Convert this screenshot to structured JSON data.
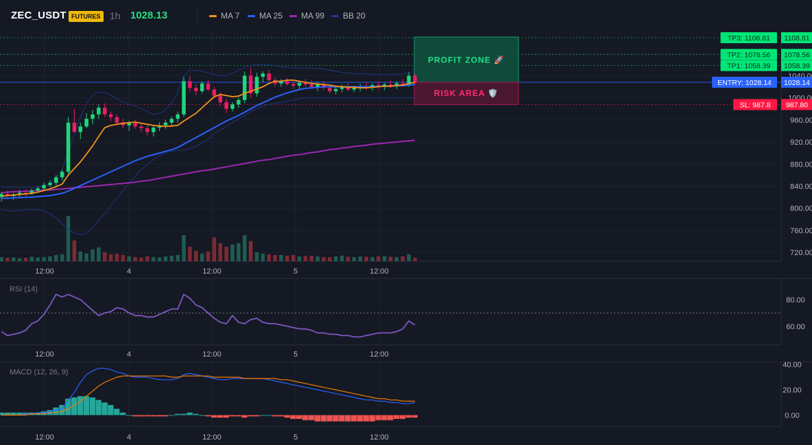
{
  "header": {
    "symbol": "ZEC_USDT",
    "badge": "FUTURES",
    "timeframe": "1h",
    "last_price": "1028.13",
    "legend": [
      {
        "label": "MA 7",
        "color": "#f7931a"
      },
      {
        "label": "MA 25",
        "color": "#2962ff"
      },
      {
        "label": "MA 99",
        "color": "#9c27b0"
      },
      {
        "label": "BB 20",
        "color": "#1e3a8a"
      }
    ]
  },
  "colors": {
    "up": "#26a69a",
    "up_bright": "#1fd67a",
    "down": "#e91e63",
    "ma7": "#f7931a",
    "ma25": "#2962ff",
    "ma99": "#9c27b0",
    "bb": "#1e3a8a",
    "rsi": "#7e57c2",
    "macd": "#2962ff",
    "signal": "#f57c00",
    "hist_up": "#26a69a",
    "hist_down": "#ef5350",
    "tp": "#00e676",
    "entry": "#2962ff",
    "sl": "#ff1744"
  },
  "chart_data": [
    {
      "type": "candlestick",
      "title": "ZEC_USDT 1h",
      "x_ticks": [
        "12:00",
        "4",
        "12:00",
        "5",
        "12:00"
      ],
      "y_ticks": [
        720,
        760,
        800,
        840,
        880,
        920,
        960,
        1000,
        1040,
        1080,
        1120
      ],
      "ylim": [
        704,
        1120
      ],
      "candles": [
        {
          "o": 820,
          "h": 830,
          "l": 812,
          "c": 826
        },
        {
          "o": 826,
          "h": 832,
          "l": 818,
          "c": 822
        },
        {
          "o": 822,
          "h": 828,
          "l": 815,
          "c": 825
        },
        {
          "o": 825,
          "h": 833,
          "l": 820,
          "c": 828
        },
        {
          "o": 828,
          "h": 834,
          "l": 822,
          "c": 826
        },
        {
          "o": 826,
          "h": 836,
          "l": 824,
          "c": 832
        },
        {
          "o": 832,
          "h": 840,
          "l": 828,
          "c": 836
        },
        {
          "o": 836,
          "h": 846,
          "l": 832,
          "c": 842
        },
        {
          "o": 842,
          "h": 850,
          "l": 838,
          "c": 846
        },
        {
          "o": 846,
          "h": 860,
          "l": 840,
          "c": 856
        },
        {
          "o": 856,
          "h": 870,
          "l": 850,
          "c": 866
        },
        {
          "o": 866,
          "h": 965,
          "l": 862,
          "c": 955
        },
        {
          "o": 955,
          "h": 980,
          "l": 940,
          "c": 938
        },
        {
          "o": 938,
          "h": 955,
          "l": 925,
          "c": 948
        },
        {
          "o": 948,
          "h": 972,
          "l": 945,
          "c": 962
        },
        {
          "o": 962,
          "h": 978,
          "l": 952,
          "c": 970
        },
        {
          "o": 970,
          "h": 988,
          "l": 962,
          "c": 982
        },
        {
          "o": 982,
          "h": 990,
          "l": 965,
          "c": 970
        },
        {
          "o": 970,
          "h": 975,
          "l": 958,
          "c": 965
        },
        {
          "o": 965,
          "h": 970,
          "l": 950,
          "c": 955
        },
        {
          "o": 955,
          "h": 962,
          "l": 945,
          "c": 950
        },
        {
          "o": 950,
          "h": 958,
          "l": 940,
          "c": 954
        },
        {
          "o": 954,
          "h": 960,
          "l": 944,
          "c": 948
        },
        {
          "o": 948,
          "h": 956,
          "l": 938,
          "c": 945
        },
        {
          "o": 945,
          "h": 952,
          "l": 932,
          "c": 938
        },
        {
          "o": 938,
          "h": 950,
          "l": 930,
          "c": 946
        },
        {
          "o": 946,
          "h": 956,
          "l": 940,
          "c": 950
        },
        {
          "o": 950,
          "h": 960,
          "l": 944,
          "c": 955
        },
        {
          "o": 955,
          "h": 966,
          "l": 950,
          "c": 962
        },
        {
          "o": 962,
          "h": 975,
          "l": 955,
          "c": 970
        },
        {
          "o": 970,
          "h": 1038,
          "l": 965,
          "c": 1030
        },
        {
          "o": 1030,
          "h": 1040,
          "l": 1010,
          "c": 1018
        },
        {
          "o": 1018,
          "h": 1025,
          "l": 1005,
          "c": 1012
        },
        {
          "o": 1012,
          "h": 1030,
          "l": 1008,
          "c": 1026
        },
        {
          "o": 1026,
          "h": 1032,
          "l": 1012,
          "c": 1015
        },
        {
          "o": 1015,
          "h": 1020,
          "l": 998,
          "c": 1004
        },
        {
          "o": 1004,
          "h": 1010,
          "l": 985,
          "c": 992
        },
        {
          "o": 992,
          "h": 998,
          "l": 972,
          "c": 980
        },
        {
          "o": 980,
          "h": 992,
          "l": 975,
          "c": 988
        },
        {
          "o": 988,
          "h": 1000,
          "l": 982,
          "c": 996
        },
        {
          "o": 996,
          "h": 1048,
          "l": 990,
          "c": 1040
        },
        {
          "o": 1040,
          "h": 1055,
          "l": 1000,
          "c": 1008
        },
        {
          "o": 1008,
          "h": 1045,
          "l": 1002,
          "c": 1038
        },
        {
          "o": 1038,
          "h": 1048,
          "l": 1028,
          "c": 1044
        },
        {
          "o": 1044,
          "h": 1050,
          "l": 1030,
          "c": 1032
        },
        {
          "o": 1032,
          "h": 1038,
          "l": 1020,
          "c": 1026
        },
        {
          "o": 1026,
          "h": 1034,
          "l": 1020,
          "c": 1030
        },
        {
          "o": 1030,
          "h": 1036,
          "l": 1022,
          "c": 1025
        },
        {
          "o": 1025,
          "h": 1032,
          "l": 1016,
          "c": 1022
        },
        {
          "o": 1022,
          "h": 1030,
          "l": 1015,
          "c": 1027
        },
        {
          "o": 1027,
          "h": 1034,
          "l": 1020,
          "c": 1024
        },
        {
          "o": 1024,
          "h": 1032,
          "l": 1016,
          "c": 1020
        },
        {
          "o": 1020,
          "h": 1028,
          "l": 1012,
          "c": 1024
        },
        {
          "o": 1024,
          "h": 1030,
          "l": 1014,
          "c": 1018
        },
        {
          "o": 1018,
          "h": 1024,
          "l": 1008,
          "c": 1012
        },
        {
          "o": 1012,
          "h": 1020,
          "l": 1006,
          "c": 1016
        },
        {
          "o": 1016,
          "h": 1024,
          "l": 1010,
          "c": 1020
        },
        {
          "o": 1020,
          "h": 1026,
          "l": 1012,
          "c": 1015
        },
        {
          "o": 1015,
          "h": 1022,
          "l": 1010,
          "c": 1018
        },
        {
          "o": 1018,
          "h": 1025,
          "l": 1012,
          "c": 1021
        },
        {
          "o": 1021,
          "h": 1028,
          "l": 1014,
          "c": 1019
        },
        {
          "o": 1019,
          "h": 1026,
          "l": 1013,
          "c": 1023
        },
        {
          "o": 1023,
          "h": 1030,
          "l": 1016,
          "c": 1020
        },
        {
          "o": 1020,
          "h": 1027,
          "l": 1014,
          "c": 1024
        },
        {
          "o": 1024,
          "h": 1032,
          "l": 1018,
          "c": 1022
        },
        {
          "o": 1022,
          "h": 1030,
          "l": 1016,
          "c": 1026
        },
        {
          "o": 1026,
          "h": 1034,
          "l": 1020,
          "c": 1023
        },
        {
          "o": 1023,
          "h": 1046,
          "l": 1020,
          "c": 1040
        },
        {
          "o": 1040,
          "h": 1044,
          "l": 1025,
          "c": 1028
        }
      ],
      "ma7": [
        822,
        823,
        824,
        825,
        826,
        827,
        829,
        832,
        835,
        839,
        844,
        860,
        872,
        884,
        898,
        913,
        930,
        946,
        950,
        952,
        954,
        955,
        956,
        954,
        952,
        950,
        949,
        948,
        949,
        950,
        958,
        965,
        972,
        982,
        992,
        1002,
        1006,
        1004,
        1002,
        1003,
        1008,
        1012,
        1016,
        1020,
        1026,
        1030,
        1030,
        1032,
        1032,
        1030,
        1028,
        1026,
        1025,
        1024,
        1023,
        1021,
        1020,
        1019,
        1019,
        1018,
        1018,
        1019,
        1020,
        1021,
        1021,
        1022,
        1023,
        1026,
        1028
      ],
      "ma25": [
        818,
        818,
        819,
        819,
        820,
        820,
        821,
        822,
        823,
        825,
        827,
        831,
        836,
        841,
        846,
        851,
        856,
        861,
        866,
        871,
        876,
        881,
        886,
        890,
        894,
        897,
        900,
        903,
        906,
        910,
        916,
        922,
        928,
        934,
        940,
        946,
        952,
        958,
        963,
        968,
        974,
        980,
        986,
        991,
        996,
        1001,
        1005,
        1009,
        1012,
        1015,
        1017,
        1018,
        1019,
        1020,
        1020,
        1020,
        1020,
        1020,
        1020,
        1020,
        1020,
        1020,
        1021,
        1021,
        1021,
        1022,
        1022,
        1023,
        1024
      ],
      "ma99": [
        828,
        829,
        830,
        830,
        831,
        831,
        832,
        833,
        833,
        834,
        835,
        836,
        837,
        838,
        839,
        840,
        841,
        842,
        843,
        844,
        845,
        846,
        847,
        849,
        850,
        852,
        854,
        856,
        858,
        860,
        862,
        864,
        866,
        868,
        869,
        871,
        873,
        875,
        877,
        879,
        881,
        883,
        885,
        887,
        888,
        890,
        892,
        894,
        896,
        897,
        899,
        901,
        902,
        904,
        906,
        907,
        909,
        910,
        912,
        913,
        914,
        916,
        917,
        918,
        919,
        920,
        921,
        922,
        923
      ],
      "bb_upper": [
        838,
        838,
        838,
        838,
        838,
        838,
        838,
        840,
        845,
        855,
        870,
        900,
        935,
        965,
        990,
        1005,
        1010,
        1010,
        1005,
        998,
        992,
        988,
        985,
        980,
        975,
        970,
        972,
        978,
        990,
        1010,
        1040,
        1050,
        1050,
        1048,
        1045,
        1042,
        1040,
        1040,
        1045,
        1050,
        1055,
        1058,
        1060,
        1060,
        1060,
        1058,
        1056,
        1055,
        1054,
        1054,
        1054,
        1054,
        1053,
        1052,
        1050,
        1048,
        1046,
        1045,
        1044,
        1044,
        1043,
        1042,
        1042,
        1042,
        1042,
        1042,
        1043,
        1045,
        1048
      ],
      "bb_lower": [
        798,
        796,
        795,
        796,
        797,
        798,
        797,
        795,
        790,
        782,
        772,
        762,
        755,
        752,
        755,
        765,
        778,
        790,
        805,
        818,
        832,
        845,
        858,
        870,
        880,
        888,
        895,
        900,
        903,
        905,
        905,
        908,
        912,
        918,
        925,
        935,
        942,
        948,
        955,
        962,
        968,
        975,
        980,
        985,
        988,
        990,
        992,
        994,
        996,
        998,
        1000,
        1000,
        1000,
        1000,
        1000,
        1000,
        1000,
        1000,
        1000,
        1000,
        1000,
        1000,
        1000,
        1000,
        1000,
        1000,
        1000,
        1000,
        1000
      ],
      "volume": [
        12,
        10,
        11,
        9,
        10,
        13,
        11,
        12,
        14,
        18,
        20,
        130,
        60,
        28,
        22,
        34,
        40,
        26,
        20,
        22,
        18,
        14,
        12,
        10,
        14,
        12,
        11,
        14,
        16,
        18,
        75,
        42,
        30,
        22,
        28,
        68,
        52,
        42,
        48,
        52,
        75,
        58,
        26,
        22,
        20,
        18,
        18,
        16,
        18,
        14,
        15,
        16,
        14,
        12,
        12,
        14,
        16,
        13,
        12,
        14,
        13,
        12,
        14,
        15,
        13,
        12,
        14,
        20,
        10
      ],
      "levels": [
        {
          "label": "TP3: 1108.81",
          "axis_label": "1108.81",
          "value": 1108.81
        },
        {
          "label": "TP2: 1078.56",
          "axis_label": "1078.56",
          "value": 1078.56
        },
        {
          "label": "TP1: 1058.39",
          "axis_label": "1058.39",
          "value": 1058.39
        },
        {
          "label": "ENTRY: 1028.14",
          "axis_label": "1028.14",
          "value": 1028.14
        },
        {
          "label": "SL: 987.8",
          "axis_label": "987.80",
          "value": 987.8
        }
      ],
      "zones": {
        "profit": "PROFIT ZONE 🚀",
        "risk": "RISK AREA 🛡️"
      }
    },
    {
      "type": "line",
      "title": "RSI (14)",
      "x_ticks": [
        "12:00",
        "4",
        "12:00",
        "5",
        "12:00"
      ],
      "y_ticks": [
        80,
        60
      ],
      "ylim": [
        46,
        96
      ],
      "reference": 70,
      "values": [
        56,
        53,
        54,
        55,
        57,
        62,
        64,
        69,
        76,
        84,
        82,
        84,
        82,
        80,
        76,
        72,
        68,
        70,
        71,
        74,
        73,
        70,
        68,
        68,
        67,
        67,
        69,
        71,
        73,
        73,
        84,
        81,
        76,
        74,
        70,
        66,
        63,
        62,
        68,
        63,
        62,
        65,
        66,
        63,
        62,
        62,
        61,
        60,
        59,
        58,
        58,
        57,
        55,
        55,
        54,
        54,
        53,
        53,
        52,
        52,
        53,
        54,
        55,
        55,
        55,
        56,
        58,
        64,
        61
      ]
    },
    {
      "type": "line",
      "title": "MACD (12, 26, 9)",
      "x_ticks": [
        "12:00",
        "4",
        "12:00",
        "5",
        "12:00"
      ],
      "y_ticks": [
        40,
        20,
        0
      ],
      "ylim": [
        -9,
        42
      ],
      "macd": [
        0,
        0,
        0,
        0,
        1,
        1,
        2,
        2,
        3,
        4,
        5,
        12,
        18,
        26,
        32,
        35,
        37,
        37,
        36,
        34,
        33,
        31,
        30,
        30,
        30,
        29,
        28,
        28,
        28,
        29,
        32,
        33,
        32,
        31,
        30,
        29,
        28,
        28,
        29,
        29,
        29,
        29,
        29,
        29,
        28,
        27,
        26,
        25,
        24,
        23,
        22,
        21,
        20,
        19,
        18,
        17,
        16,
        15,
        14,
        13,
        12,
        12,
        11,
        11,
        10,
        10,
        9,
        9,
        10
      ],
      "signal": [
        0,
        0,
        0,
        0,
        0,
        1,
        1,
        1,
        2,
        2,
        3,
        5,
        8,
        11,
        15,
        19,
        23,
        26,
        28,
        30,
        31,
        31,
        31,
        31,
        31,
        31,
        31,
        31,
        30,
        30,
        31,
        31,
        31,
        31,
        31,
        30,
        30,
        30,
        30,
        30,
        29,
        29,
        29,
        29,
        29,
        29,
        28,
        28,
        27,
        26,
        25,
        24,
        23,
        22,
        21,
        20,
        19,
        18,
        17,
        16,
        15,
        14,
        13,
        13,
        12,
        12,
        11,
        11,
        11
      ],
      "histogram": [
        2,
        2,
        2,
        2,
        2,
        2,
        2,
        3,
        4,
        6,
        8,
        13,
        14,
        15,
        15,
        14,
        12,
        10,
        8,
        5,
        2,
        0,
        -1,
        -1,
        -1,
        -1,
        -1,
        -1,
        0,
        1,
        1,
        2,
        1,
        0,
        -1,
        -2,
        -2,
        -2,
        -1,
        -1,
        -2,
        -1,
        -1,
        0,
        0,
        -1,
        -1,
        -2,
        -3,
        -3,
        -4,
        -4,
        -5,
        -5,
        -5,
        -5,
        -5,
        -5,
        -5,
        -5,
        -5,
        -5,
        -4,
        -4,
        -4,
        -3,
        -3,
        -2,
        -2
      ]
    }
  ]
}
